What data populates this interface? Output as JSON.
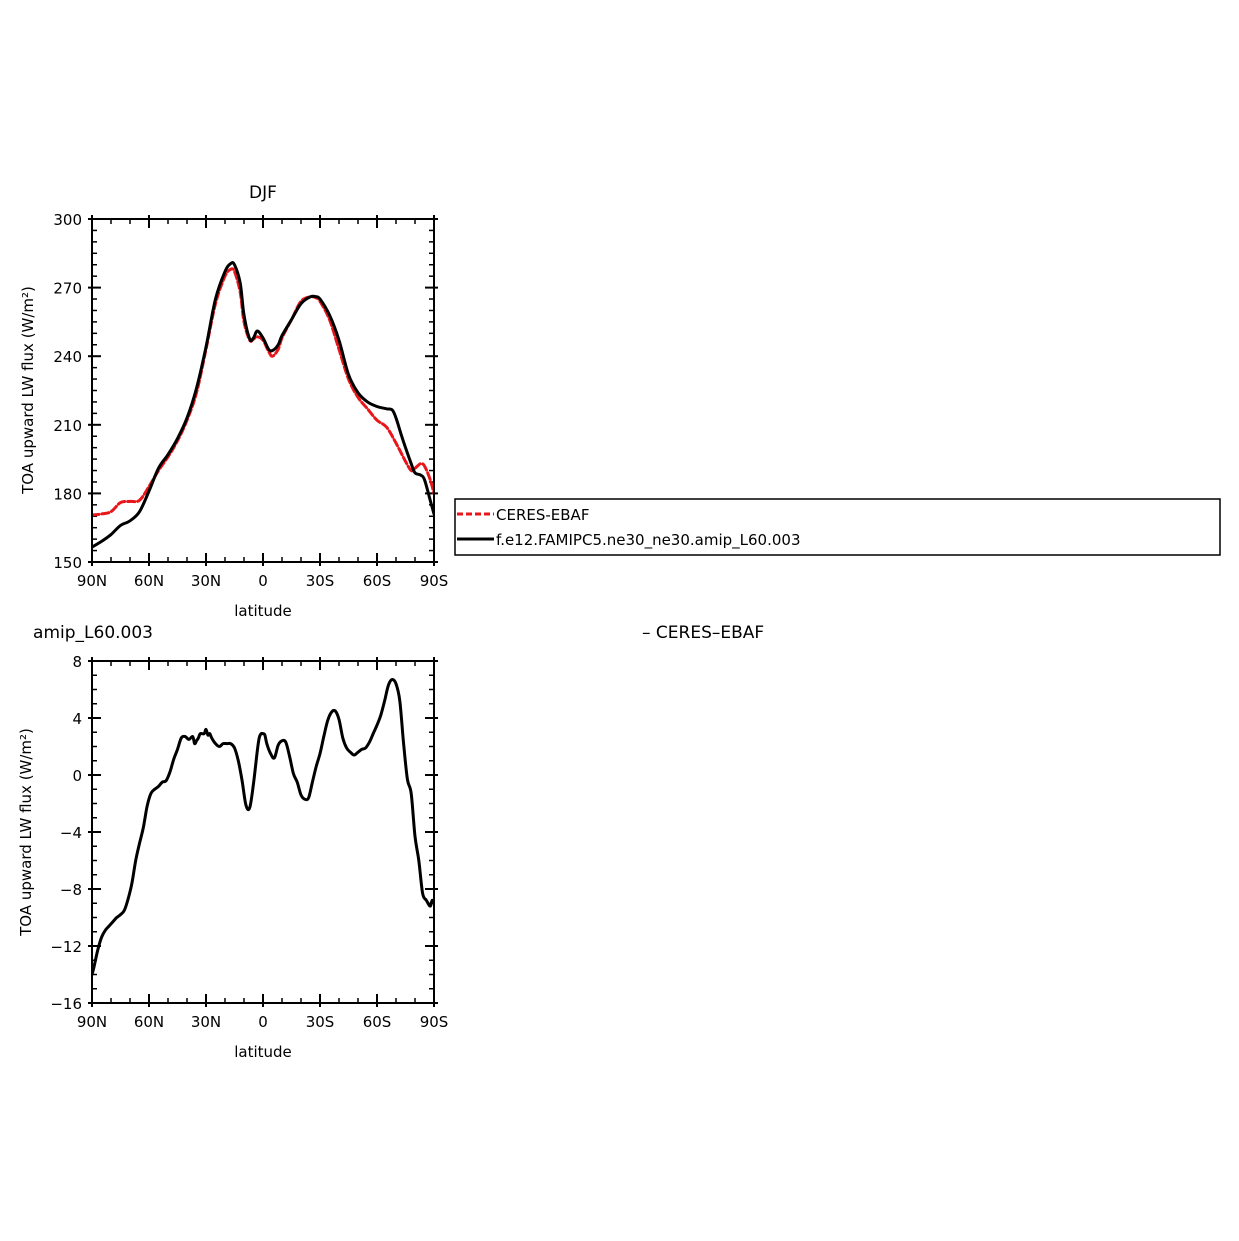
{
  "chart_data": [
    {
      "type": "line",
      "title": "DJF",
      "xlabel": "latitude",
      "ylabel": "TOA upward LW flux (W/m²)",
      "xlim": [
        90,
        -90
      ],
      "ylim": [
        150,
        300
      ],
      "xticks": [
        90,
        60,
        30,
        0,
        -30,
        -60,
        -90
      ],
      "xtick_labels": [
        "90N",
        "60N",
        "30N",
        "0",
        "30S",
        "60S",
        "90S"
      ],
      "yticks": [
        150,
        180,
        210,
        240,
        270,
        300
      ],
      "ytick_labels": [
        "150",
        "180",
        "210",
        "240",
        "270",
        "300"
      ],
      "legend_position": "right",
      "series": [
        {
          "name": "CERES-EBAF",
          "color": "#e8161a",
          "dash": "dashed",
          "x": [
            90,
            85,
            80,
            75,
            70,
            65,
            60,
            55,
            50,
            45,
            40,
            35,
            30,
            25,
            20,
            17,
            15,
            12,
            10,
            7,
            5,
            3,
            0,
            -3,
            -5,
            -8,
            -10,
            -15,
            -20,
            -25,
            -28,
            -30,
            -35,
            -40,
            -45,
            -50,
            -55,
            -60,
            -65,
            -70,
            -75,
            -78,
            -80,
            -83,
            -85,
            -88,
            -90
          ],
          "y": [
            170.5,
            171,
            172,
            176,
            176.5,
            177,
            183,
            190,
            196,
            203,
            212,
            224,
            243,
            263,
            275,
            278,
            277,
            268,
            255,
            247,
            247.5,
            248.5,
            247,
            242,
            240,
            243,
            248,
            256,
            264,
            266,
            265.5,
            264,
            256,
            243,
            230,
            222,
            217,
            212,
            209,
            202,
            194,
            190,
            191,
            193,
            192,
            186,
            180
          ]
        },
        {
          "name": "f.e12.FAMIPC5.ne30_ne30.amip_L60.003",
          "color": "#000000",
          "dash": "solid",
          "x": [
            90,
            85,
            80,
            75,
            70,
            65,
            60,
            55,
            50,
            45,
            40,
            35,
            30,
            25,
            20,
            17,
            15,
            12,
            10,
            7,
            5,
            3,
            0,
            -3,
            -5,
            -8,
            -10,
            -15,
            -20,
            -25,
            -28,
            -30,
            -35,
            -40,
            -45,
            -50,
            -55,
            -60,
            -65,
            -68,
            -70,
            -73,
            -75,
            -78,
            -80,
            -83,
            -85,
            -88,
            -90
          ],
          "y": [
            156.5,
            159,
            162,
            166,
            168,
            172,
            181,
            191,
            197,
            204,
            213,
            226,
            244,
            265,
            277,
            280.5,
            280,
            272,
            258,
            247.5,
            248,
            251,
            248,
            243,
            242.5,
            245,
            249,
            256,
            263,
            266,
            266,
            265,
            258,
            247,
            232,
            224,
            220,
            218,
            217,
            216.5,
            213,
            205,
            200,
            193,
            189,
            188,
            186,
            177,
            171
          ]
        }
      ]
    },
    {
      "type": "line",
      "title": "amip_L60.003",
      "right_title": "– CERES–EBAF",
      "xlabel": "latitude",
      "ylabel": "TOA upward LW flux (W/m²)",
      "xlim": [
        90,
        -90
      ],
      "ylim": [
        -16,
        8
      ],
      "xticks": [
        90,
        60,
        30,
        0,
        -30,
        -60,
        -90
      ],
      "xtick_labels": [
        "90N",
        "60N",
        "30N",
        "0",
        "30S",
        "60S",
        "90S"
      ],
      "yticks": [
        -16,
        -12,
        -8,
        -4,
        0,
        4,
        8
      ],
      "ytick_labels": [
        "−16",
        "−12",
        "−8",
        "−4",
        "0",
        "4",
        "8"
      ],
      "series": [
        {
          "name": "",
          "color": "#000000",
          "dash": "solid",
          "x": [
            90,
            89,
            87,
            85,
            83,
            81,
            79,
            77,
            75,
            73,
            71,
            69,
            67,
            65,
            63,
            61,
            59,
            57,
            55,
            53,
            51,
            49,
            47,
            45,
            43,
            41,
            39,
            37,
            36,
            35,
            34,
            33,
            31,
            30,
            29,
            28,
            27,
            25,
            23,
            21,
            19,
            17,
            15,
            13,
            11,
            9,
            7,
            5,
            3,
            2,
            1,
            0,
            -1,
            -2,
            -4,
            -6,
            -8,
            -10,
            -12,
            -14,
            -16,
            -18,
            -20,
            -22,
            -24,
            -26,
            -28,
            -30,
            -32,
            -34,
            -36,
            -38,
            -40,
            -42,
            -44,
            -46,
            -48,
            -50,
            -52,
            -54,
            -56,
            -58,
            -60,
            -62,
            -64,
            -66,
            -68,
            -70,
            -72,
            -74,
            -76,
            -78,
            -80,
            -82,
            -84,
            -86,
            -88,
            -89,
            -90
          ],
          "y": [
            -14,
            -13.5,
            -12.3,
            -11.4,
            -10.9,
            -10.6,
            -10.3,
            -10,
            -9.8,
            -9.5,
            -8.7,
            -7.6,
            -6,
            -4.8,
            -3.7,
            -2.2,
            -1.3,
            -1,
            -0.8,
            -0.5,
            -0.4,
            0.2,
            1.1,
            1.8,
            2.6,
            2.7,
            2.5,
            2.7,
            2.2,
            2.4,
            2.6,
            2.9,
            2.9,
            3.2,
            2.8,
            2.9,
            2.6,
            2.2,
            2,
            2.2,
            2.2,
            2.2,
            1.9,
            1,
            -0.4,
            -2.1,
            -2.3,
            -0.6,
            1.7,
            2.6,
            2.9,
            2.9,
            2.8,
            2.2,
            1.5,
            1.2,
            2.1,
            2.4,
            2.3,
            1.3,
            0.1,
            -0.5,
            -1.4,
            -1.7,
            -1.6,
            -0.5,
            0.6,
            1.5,
            2.7,
            3.8,
            4.4,
            4.5,
            3.9,
            2.6,
            1.9,
            1.6,
            1.4,
            1.6,
            1.8,
            1.9,
            2.3,
            2.9,
            3.5,
            4.2,
            5.2,
            6.3,
            6.7,
            6.4,
            5.2,
            2.2,
            -0.3,
            -1.3,
            -4.3,
            -6,
            -8.3,
            -8.8,
            -9.2,
            -8.8,
            -9
          ]
        }
      ]
    }
  ]
}
